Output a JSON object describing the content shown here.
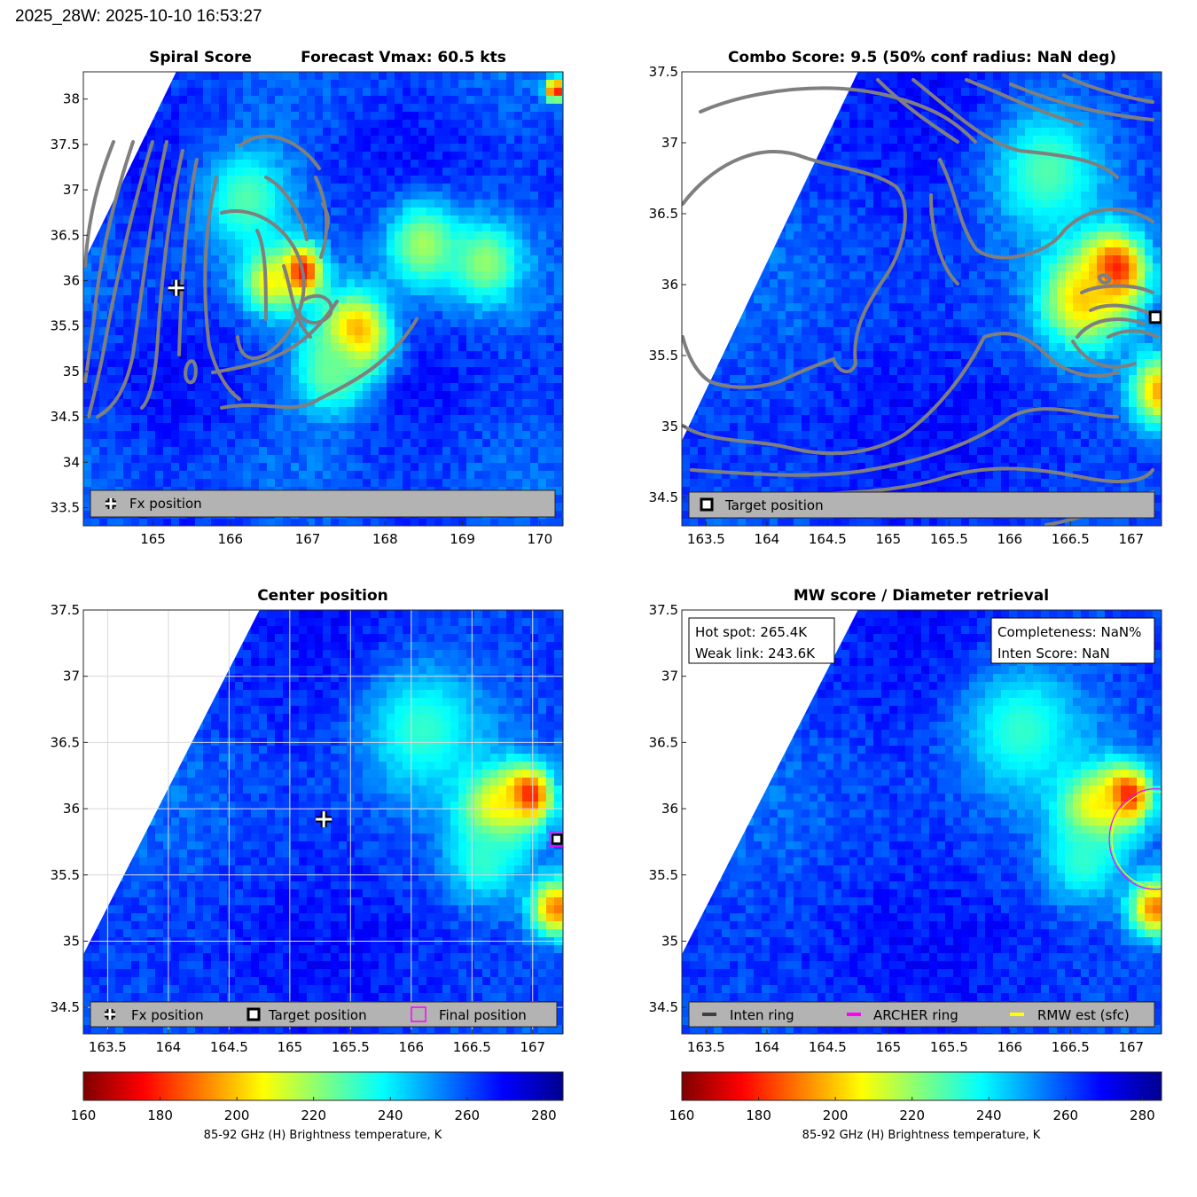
{
  "header": "2025_28W: 2025-10-10 16:53:27",
  "colors": {
    "contour": "#7f7f7f",
    "legend_bg": "#b3b3b3",
    "final_position": "#ff00ff",
    "archer_ring": "#ff00ff",
    "rmw_ring": "#ffff00",
    "inten_ring": "#404040",
    "jet": [
      "#7f0000",
      "#ff0000",
      "#ff7f00",
      "#ffff00",
      "#7fff7f",
      "#00ffff",
      "#007fff",
      "#0000ff",
      "#00008f"
    ]
  },
  "chart_data": [
    {
      "id": "spiral",
      "type": "heatmap",
      "title_left": "Spiral Score",
      "title_right": "Forecast Vmax: 60.5 kts",
      "xlim": [
        164.1,
        170.3
      ],
      "ylim": [
        33.3,
        38.3
      ],
      "x_ticks": [
        165,
        166,
        167,
        168,
        169,
        170
      ],
      "y_ticks": [
        33.5,
        34,
        34.5,
        35,
        35.5,
        36,
        36.5,
        37,
        37.5,
        38
      ],
      "x_tick_labels": [
        "165",
        "166",
        "167",
        "168",
        "169",
        "170"
      ],
      "y_tick_labels": [
        "33.5",
        "34",
        "34.5",
        "35",
        "35.5",
        "36",
        "36.5",
        "37",
        "37.5",
        "38"
      ],
      "swath_edge": [
        [
          164.1,
          36.2
        ],
        [
          165.3,
          38.3
        ]
      ],
      "warm_spots": [
        {
          "lon": 166.9,
          "lat": 36.1,
          "tb": 165,
          "r": 0.28
        },
        {
          "lon": 167.6,
          "lat": 35.4,
          "tb": 185,
          "r": 0.45
        },
        {
          "lon": 166.5,
          "lat": 36.0,
          "tb": 205,
          "r": 0.35
        },
        {
          "lon": 168.5,
          "lat": 36.4,
          "tb": 218,
          "r": 0.5
        },
        {
          "lon": 169.3,
          "lat": 36.2,
          "tb": 220,
          "r": 0.45
        },
        {
          "lon": 166.2,
          "lat": 36.9,
          "tb": 228,
          "r": 0.6
        },
        {
          "lon": 167.3,
          "lat": 35.0,
          "tb": 225,
          "r": 0.5
        },
        {
          "lon": 170.2,
          "lat": 38.1,
          "tb": 170,
          "r": 0.12
        }
      ],
      "markers": [
        {
          "type": "fx",
          "lon": 165.3,
          "lat": 35.92
        }
      ],
      "legend": [
        "Fx position"
      ]
    },
    {
      "id": "combo",
      "type": "heatmap",
      "title": "Combo Score: 9.5  (50% conf radius: NaN deg)",
      "xlim": [
        163.3,
        167.25
      ],
      "ylim": [
        34.3,
        37.5
      ],
      "x_ticks": [
        163.5,
        164,
        164.5,
        165,
        165.5,
        166,
        166.5,
        167
      ],
      "y_ticks": [
        34.5,
        35,
        35.5,
        36,
        36.5,
        37,
        37.5
      ],
      "x_tick_labels": [
        "163.5",
        "164",
        "164.5",
        "165",
        "165.5",
        "166",
        "166.5",
        "167"
      ],
      "y_tick_labels": [
        "34.5",
        "35",
        "35.5",
        "36",
        "36.5",
        "37",
        "37.5"
      ],
      "swath_edge": [
        [
          163.3,
          34.9
        ],
        [
          164.75,
          37.5
        ]
      ],
      "warm_spots": [
        {
          "lon": 166.85,
          "lat": 36.1,
          "tb": 165,
          "r": 0.25
        },
        {
          "lon": 166.6,
          "lat": 35.9,
          "tb": 200,
          "r": 0.35
        },
        {
          "lon": 167.25,
          "lat": 35.25,
          "tb": 195,
          "r": 0.25
        },
        {
          "lon": 166.3,
          "lat": 36.8,
          "tb": 228,
          "r": 0.45
        }
      ],
      "markers": [
        {
          "type": "target",
          "lon": 167.2,
          "lat": 35.77
        }
      ],
      "legend": [
        "Target position"
      ]
    },
    {
      "id": "center",
      "type": "heatmap",
      "title": "Center position",
      "xlim": [
        163.3,
        167.25
      ],
      "ylim": [
        34.3,
        37.5
      ],
      "x_ticks": [
        163.5,
        164,
        164.5,
        165,
        165.5,
        166,
        166.5,
        167
      ],
      "y_ticks": [
        34.5,
        35,
        35.5,
        36,
        36.5,
        37,
        37.5
      ],
      "x_tick_labels": [
        "163.5",
        "164",
        "164.5",
        "165",
        "165.5",
        "166",
        "166.5",
        "167"
      ],
      "y_tick_labels": [
        "34.5",
        "35",
        "35.5",
        "36",
        "36.5",
        "37",
        "37.5"
      ],
      "grid": true,
      "swath_edge": [
        [
          163.3,
          34.9
        ],
        [
          164.75,
          37.5
        ]
      ],
      "warm_spots": [
        {
          "lon": 166.95,
          "lat": 36.1,
          "tb": 162,
          "r": 0.2
        },
        {
          "lon": 166.7,
          "lat": 36.0,
          "tb": 200,
          "r": 0.3
        },
        {
          "lon": 167.2,
          "lat": 35.25,
          "tb": 190,
          "r": 0.22
        },
        {
          "lon": 166.6,
          "lat": 35.6,
          "tb": 232,
          "r": 0.3
        },
        {
          "lon": 166.1,
          "lat": 36.6,
          "tb": 232,
          "r": 0.5
        }
      ],
      "markers": [
        {
          "type": "fx",
          "lon": 165.28,
          "lat": 35.92
        },
        {
          "type": "final",
          "lon": 167.2,
          "lat": 35.77
        }
      ],
      "legend": [
        "Fx position",
        "Target position",
        "Final position"
      ]
    },
    {
      "id": "mw",
      "type": "heatmap",
      "title": "MW score / Diameter retrieval",
      "xlim": [
        163.3,
        167.25
      ],
      "ylim": [
        34.3,
        37.5
      ],
      "x_ticks": [
        163.5,
        164,
        164.5,
        165,
        165.5,
        166,
        166.5,
        167
      ],
      "y_ticks": [
        34.5,
        35,
        35.5,
        36,
        36.5,
        37,
        37.5
      ],
      "x_tick_labels": [
        "163.5",
        "164",
        "164.5",
        "165",
        "165.5",
        "166",
        "166.5",
        "167"
      ],
      "y_tick_labels": [
        "34.5",
        "35",
        "35.5",
        "36",
        "36.5",
        "37",
        "37.5"
      ],
      "swath_edge": [
        [
          163.3,
          34.9
        ],
        [
          164.75,
          37.5
        ]
      ],
      "warm_spots": [
        {
          "lon": 166.95,
          "lat": 36.1,
          "tb": 162,
          "r": 0.2
        },
        {
          "lon": 166.7,
          "lat": 36.0,
          "tb": 200,
          "r": 0.3
        },
        {
          "lon": 167.2,
          "lat": 35.25,
          "tb": 190,
          "r": 0.22
        },
        {
          "lon": 166.6,
          "lat": 35.6,
          "tb": 232,
          "r": 0.3
        },
        {
          "lon": 166.1,
          "lat": 36.6,
          "tb": 232,
          "r": 0.5
        }
      ],
      "rings": [
        {
          "type": "archer",
          "lon": 167.2,
          "lat": 35.77,
          "radius_deg": 0.38
        },
        {
          "type": "rmw",
          "lon": 167.2,
          "lat": 35.77,
          "radius_deg": 0.36
        }
      ],
      "info_left": [
        "Hot spot: 265.4K",
        "Weak link: 243.6K"
      ],
      "info_right": [
        "Completeness: NaN%",
        "Inten Score: NaN"
      ],
      "legend": [
        "Inten ring",
        "ARCHER ring",
        "RMW est (sfc)"
      ]
    }
  ],
  "colorbars": [
    {
      "range": [
        160,
        285
      ],
      "ticks": [
        "160",
        "180",
        "200",
        "220",
        "240",
        "260",
        "280"
      ],
      "label": "85-92 GHz (H) Brightness temperature, K"
    },
    {
      "range": [
        160,
        285
      ],
      "ticks": [
        "160",
        "180",
        "200",
        "220",
        "240",
        "260",
        "280"
      ],
      "label": "85-92 GHz (H) Brightness temperature, K"
    }
  ]
}
